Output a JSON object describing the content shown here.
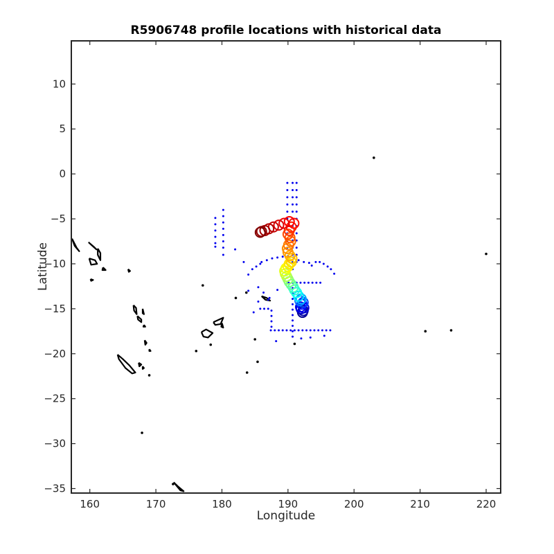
{
  "chart_data": {
    "type": "scatter",
    "title": "R5906748 profile locations with historical data",
    "xlabel": "Longitude",
    "ylabel": "Latitude",
    "xlim": [
      157.2,
      222.2
    ],
    "ylim": [
      -35.5,
      14.8
    ],
    "xticks": [
      160,
      170,
      180,
      190,
      200,
      210,
      220
    ],
    "yticks": [
      10,
      5,
      0,
      -5,
      -10,
      -15,
      -20,
      -25,
      -30,
      -35
    ],
    "grid": false,
    "colors": {
      "historical": "#0000ee",
      "coastline": "#000000",
      "profile_colormap": [
        "#00008f",
        "#0000ff",
        "#00ffff",
        "#80ff80",
        "#ffff00",
        "#ff8000",
        "#ff0000",
        "#800000"
      ]
    },
    "historical_points": [
      [
        189.9,
        -1.0
      ],
      [
        189.9,
        -1.8
      ],
      [
        189.9,
        -2.6
      ],
      [
        189.9,
        -3.4
      ],
      [
        189.9,
        -4.2
      ],
      [
        189.9,
        -5.0
      ],
      [
        189.9,
        -5.8
      ],
      [
        189.9,
        -6.6
      ],
      [
        189.9,
        -7.4
      ],
      [
        189.9,
        -8.2
      ],
      [
        190.7,
        -1.0
      ],
      [
        190.7,
        -1.8
      ],
      [
        190.7,
        -2.6
      ],
      [
        190.7,
        -3.4
      ],
      [
        190.7,
        -4.2
      ],
      [
        190.7,
        -5.0
      ],
      [
        190.7,
        -5.8
      ],
      [
        190.7,
        -6.6
      ],
      [
        190.7,
        -7.4
      ],
      [
        190.7,
        -8.2
      ],
      [
        190.7,
        -9.0
      ],
      [
        190.7,
        -9.8
      ],
      [
        190.7,
        -10.6
      ],
      [
        191.3,
        -1.0
      ],
      [
        191.3,
        -1.8
      ],
      [
        191.3,
        -2.6
      ],
      [
        191.3,
        -3.4
      ],
      [
        191.3,
        -4.2
      ],
      [
        191.3,
        -5.0
      ],
      [
        191.3,
        -5.8
      ],
      [
        191.3,
        -6.6
      ],
      [
        191.3,
        -7.4
      ],
      [
        191.3,
        -8.2
      ],
      [
        191.3,
        -9.0
      ],
      [
        191.3,
        -9.8
      ],
      [
        179.0,
        -4.9
      ],
      [
        179.0,
        -5.6
      ],
      [
        179.0,
        -6.3
      ],
      [
        179.0,
        -7.0
      ],
      [
        179.0,
        -7.7
      ],
      [
        179.0,
        -8.1
      ],
      [
        180.2,
        -4.0
      ],
      [
        180.2,
        -4.7
      ],
      [
        180.2,
        -5.4
      ],
      [
        180.2,
        -6.1
      ],
      [
        180.2,
        -6.8
      ],
      [
        180.2,
        -7.5
      ],
      [
        180.2,
        -8.2
      ],
      [
        180.2,
        -9.0
      ],
      [
        182.0,
        -8.4
      ],
      [
        183.3,
        -9.8
      ],
      [
        186.0,
        -9.8
      ],
      [
        186.8,
        -9.6
      ],
      [
        187.6,
        -9.4
      ],
      [
        188.4,
        -9.3
      ],
      [
        189.2,
        -9.2
      ],
      [
        190.0,
        -9.1
      ],
      [
        190.8,
        -9.3
      ],
      [
        191.6,
        -9.6
      ],
      [
        192.4,
        -9.8
      ],
      [
        193.2,
        -9.9
      ],
      [
        184.0,
        -11.2
      ],
      [
        184.6,
        -10.6
      ],
      [
        185.2,
        -10.3
      ],
      [
        185.8,
        -10.0
      ],
      [
        193.6,
        -10.2
      ],
      [
        194.2,
        -9.8
      ],
      [
        194.8,
        -9.8
      ],
      [
        195.4,
        -10.0
      ],
      [
        196.0,
        -10.3
      ],
      [
        196.5,
        -10.6
      ],
      [
        197.0,
        -11.1
      ],
      [
        190.1,
        -12.1
      ],
      [
        190.7,
        -12.1
      ],
      [
        191.3,
        -12.1
      ],
      [
        191.9,
        -12.1
      ],
      [
        192.5,
        -12.1
      ],
      [
        193.1,
        -12.1
      ],
      [
        193.7,
        -12.1
      ],
      [
        194.3,
        -12.1
      ],
      [
        194.9,
        -12.1
      ],
      [
        190.7,
        -12.7
      ],
      [
        190.7,
        -13.3
      ],
      [
        190.7,
        -13.9
      ],
      [
        190.7,
        -14.5
      ],
      [
        190.7,
        -15.1
      ],
      [
        190.7,
        -15.7
      ],
      [
        190.7,
        -16.3
      ],
      [
        190.7,
        -16.9
      ],
      [
        190.7,
        -17.5
      ],
      [
        190.7,
        -18.1
      ],
      [
        187.4,
        -17.4
      ],
      [
        188.0,
        -17.4
      ],
      [
        188.6,
        -17.4
      ],
      [
        189.2,
        -17.4
      ],
      [
        189.8,
        -17.4
      ],
      [
        190.4,
        -17.4
      ],
      [
        191.0,
        -17.4
      ],
      [
        191.6,
        -17.4
      ],
      [
        192.2,
        -17.4
      ],
      [
        192.8,
        -17.4
      ],
      [
        193.4,
        -17.4
      ],
      [
        194.0,
        -17.4
      ],
      [
        194.6,
        -17.4
      ],
      [
        195.2,
        -17.4
      ],
      [
        195.8,
        -17.4
      ],
      [
        196.4,
        -17.4
      ],
      [
        187.5,
        -17.0
      ],
      [
        187.5,
        -16.4
      ],
      [
        187.5,
        -15.8
      ],
      [
        187.5,
        -15.2
      ],
      [
        187.0,
        -14.0
      ],
      [
        185.8,
        -15.0
      ],
      [
        186.4,
        -15.0
      ],
      [
        187.0,
        -15.0
      ],
      [
        185.5,
        -12.6
      ],
      [
        186.3,
        -13.2
      ],
      [
        187.2,
        -13.8
      ],
      [
        188.4,
        -12.9
      ],
      [
        184.0,
        -13.0
      ],
      [
        185.5,
        -14.2
      ],
      [
        184.8,
        -15.4
      ],
      [
        192.0,
        -18.3
      ],
      [
        193.4,
        -18.2
      ],
      [
        195.5,
        -18.0
      ],
      [
        188.2,
        -18.6
      ]
    ],
    "profile_points": [
      {
        "lon": 192.2,
        "lat": -15.4,
        "v": 0.0
      },
      {
        "lon": 192.3,
        "lat": -15.2,
        "v": 0.03
      },
      {
        "lon": 192.0,
        "lat": -15.0,
        "v": 0.06
      },
      {
        "lon": 192.4,
        "lat": -14.9,
        "v": 0.09
      },
      {
        "lon": 191.9,
        "lat": -14.8,
        "v": 0.12
      },
      {
        "lon": 192.1,
        "lat": -14.5,
        "v": 0.15
      },
      {
        "lon": 192.3,
        "lat": -14.3,
        "v": 0.18
      },
      {
        "lon": 191.8,
        "lat": -14.1,
        "v": 0.21
      },
      {
        "lon": 192.0,
        "lat": -13.9,
        "v": 0.24
      },
      {
        "lon": 191.6,
        "lat": -13.6,
        "v": 0.27
      },
      {
        "lon": 191.3,
        "lat": -13.2,
        "v": 0.3
      },
      {
        "lon": 191.0,
        "lat": -12.9,
        "v": 0.33
      },
      {
        "lon": 190.8,
        "lat": -12.6,
        "v": 0.36
      },
      {
        "lon": 190.5,
        "lat": -12.3,
        "v": 0.39
      },
      {
        "lon": 190.2,
        "lat": -12.0,
        "v": 0.42
      },
      {
        "lon": 190.0,
        "lat": -11.7,
        "v": 0.45
      },
      {
        "lon": 189.8,
        "lat": -11.4,
        "v": 0.48
      },
      {
        "lon": 189.6,
        "lat": -11.1,
        "v": 0.51
      },
      {
        "lon": 189.5,
        "lat": -10.8,
        "v": 0.54
      },
      {
        "lon": 189.7,
        "lat": -10.5,
        "v": 0.56
      },
      {
        "lon": 190.0,
        "lat": -10.3,
        "v": 0.58
      },
      {
        "lon": 190.2,
        "lat": -10.0,
        "v": 0.6
      },
      {
        "lon": 190.5,
        "lat": -9.8,
        "v": 0.62
      },
      {
        "lon": 190.6,
        "lat": -9.4,
        "v": 0.64
      },
      {
        "lon": 190.3,
        "lat": -9.1,
        "v": 0.66
      },
      {
        "lon": 190.0,
        "lat": -8.7,
        "v": 0.68
      },
      {
        "lon": 189.9,
        "lat": -8.3,
        "v": 0.7
      },
      {
        "lon": 190.1,
        "lat": -7.9,
        "v": 0.72
      },
      {
        "lon": 190.4,
        "lat": -7.5,
        "v": 0.74
      },
      {
        "lon": 190.3,
        "lat": -7.1,
        "v": 0.76
      },
      {
        "lon": 190.0,
        "lat": -6.7,
        "v": 0.78
      },
      {
        "lon": 190.2,
        "lat": -6.3,
        "v": 0.8
      },
      {
        "lon": 190.5,
        "lat": -5.9,
        "v": 0.82
      },
      {
        "lon": 190.9,
        "lat": -5.5,
        "v": 0.84
      },
      {
        "lon": 190.2,
        "lat": -5.3,
        "v": 0.86
      },
      {
        "lon": 189.4,
        "lat": -5.5,
        "v": 0.88
      },
      {
        "lon": 188.6,
        "lat": -5.7,
        "v": 0.9
      },
      {
        "lon": 187.8,
        "lat": -5.9,
        "v": 0.92
      },
      {
        "lon": 187.1,
        "lat": -6.1,
        "v": 0.94
      },
      {
        "lon": 186.5,
        "lat": -6.3,
        "v": 0.96
      },
      {
        "lon": 186.0,
        "lat": -6.4,
        "v": 0.98
      },
      {
        "lon": 185.8,
        "lat": -6.5,
        "v": 1.0
      }
    ],
    "coastlines": [
      [
        [
          157.3,
          -7.2
        ],
        [
          157.7,
          -8.0
        ],
        [
          158.4,
          -8.6
        ],
        [
          158.0,
          -8.2
        ],
        [
          157.3,
          -7.2
        ]
      ],
      [
        [
          159.8,
          -7.6
        ],
        [
          160.4,
          -8.0
        ],
        [
          161.0,
          -8.4
        ],
        [
          160.6,
          -8.1
        ],
        [
          159.8,
          -7.6
        ]
      ],
      [
        [
          159.9,
          -9.4
        ],
        [
          160.8,
          -9.6
        ],
        [
          161.1,
          -10.0
        ],
        [
          160.2,
          -10.1
        ],
        [
          159.9,
          -9.4
        ]
      ],
      [
        [
          161.2,
          -8.3
        ],
        [
          161.6,
          -8.8
        ],
        [
          161.6,
          -9.6
        ],
        [
          161.2,
          -9.0
        ],
        [
          161.2,
          -8.3
        ]
      ],
      [
        [
          162.0,
          -10.4
        ],
        [
          162.4,
          -10.7
        ],
        [
          161.9,
          -10.7
        ],
        [
          162.0,
          -10.4
        ]
      ],
      [
        [
          160.1,
          -11.7
        ],
        [
          160.5,
          -11.8
        ],
        [
          160.2,
          -11.9
        ],
        [
          160.1,
          -11.7
        ]
      ],
      [
        [
          165.8,
          -10.6
        ],
        [
          166.1,
          -10.8
        ],
        [
          165.9,
          -10.9
        ],
        [
          165.8,
          -10.6
        ]
      ],
      [
        [
          166.6,
          -14.6
        ],
        [
          167.0,
          -14.9
        ],
        [
          167.1,
          -15.6
        ],
        [
          166.7,
          -15.2
        ],
        [
          166.6,
          -14.6
        ]
      ],
      [
        [
          167.2,
          -15.8
        ],
        [
          167.8,
          -16.2
        ],
        [
          167.8,
          -16.5
        ],
        [
          167.3,
          -16.2
        ],
        [
          167.2,
          -15.8
        ]
      ],
      [
        [
          168.0,
          -15.0
        ],
        [
          168.2,
          -15.6
        ],
        [
          168.0,
          -15.5
        ],
        [
          168.0,
          -15.0
        ]
      ],
      [
        [
          168.2,
          -16.8
        ],
        [
          168.4,
          -17.0
        ],
        [
          168.1,
          -17.0
        ],
        [
          168.2,
          -16.8
        ]
      ],
      [
        [
          168.3,
          -18.5
        ],
        [
          168.6,
          -18.8
        ],
        [
          168.4,
          -19.0
        ],
        [
          168.3,
          -18.5
        ]
      ],
      [
        [
          169.0,
          -19.5
        ],
        [
          169.2,
          -19.7
        ],
        [
          169.0,
          -19.7
        ],
        [
          169.0,
          -19.5
        ]
      ],
      [
        [
          164.2,
          -20.1
        ],
        [
          165.0,
          -20.6
        ],
        [
          166.0,
          -21.3
        ],
        [
          166.9,
          -22.1
        ],
        [
          166.4,
          -22.2
        ],
        [
          165.4,
          -21.6
        ],
        [
          164.4,
          -20.6
        ],
        [
          164.2,
          -20.1
        ]
      ],
      [
        [
          167.4,
          -21.0
        ],
        [
          167.8,
          -21.2
        ],
        [
          167.5,
          -21.4
        ],
        [
          167.4,
          -21.0
        ]
      ],
      [
        [
          168.0,
          -21.4
        ],
        [
          168.2,
          -21.6
        ],
        [
          168.0,
          -21.7
        ],
        [
          168.0,
          -21.4
        ]
      ],
      [
        [
          176.9,
          -17.6
        ],
        [
          177.6,
          -17.3
        ],
        [
          178.6,
          -17.7
        ],
        [
          177.9,
          -18.2
        ],
        [
          177.2,
          -18.1
        ],
        [
          176.9,
          -17.6
        ]
      ],
      [
        [
          178.7,
          -16.5
        ],
        [
          179.6,
          -16.2
        ],
        [
          180.2,
          -16.0
        ],
        [
          179.8,
          -16.7
        ],
        [
          179.0,
          -16.8
        ],
        [
          178.7,
          -16.5
        ]
      ],
      [
        [
          180.0,
          -16.6
        ],
        [
          180.2,
          -17.1
        ],
        [
          179.9,
          -17.0
        ],
        [
          180.0,
          -16.6
        ]
      ],
      [
        [
          186.0,
          -13.6
        ],
        [
          186.8,
          -13.8
        ],
        [
          187.3,
          -14.1
        ],
        [
          186.6,
          -14.0
        ],
        [
          186.0,
          -13.6
        ]
      ],
      [
        [
          172.7,
          -34.3
        ],
        [
          173.4,
          -34.8
        ],
        [
          174.2,
          -35.3
        ],
        [
          173.7,
          -35.2
        ],
        [
          172.7,
          -34.3
        ]
      ]
    ],
    "islands": [
      [
        203.0,
        1.8
      ],
      [
        220.0,
        -8.9
      ],
      [
        210.8,
        -17.5
      ],
      [
        214.7,
        -17.4
      ],
      [
        191.0,
        -18.9
      ],
      [
        185.0,
        -18.4
      ],
      [
        185.4,
        -20.9
      ],
      [
        183.8,
        -22.1
      ],
      [
        178.3,
        -19.0
      ],
      [
        177.1,
        -12.4
      ],
      [
        182.1,
        -13.8
      ],
      [
        183.7,
        -13.2
      ],
      [
        176.1,
        -19.7
      ],
      [
        167.9,
        -28.8
      ],
      [
        169.0,
        -22.4
      ],
      [
        172.6,
        -34.5
      ]
    ]
  }
}
